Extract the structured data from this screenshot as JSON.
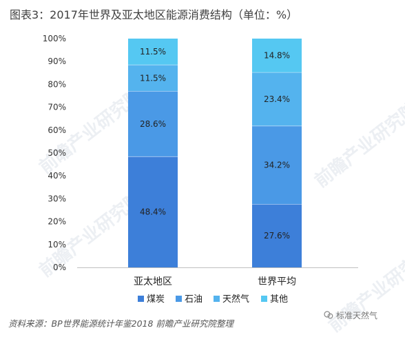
{
  "title": "图表3：2017年世界及亚太地区能源消费结构（单位：%）",
  "source": "资料来源：BP世界能源统计年鉴2018  前瞻产业研究院整理",
  "watermark_text": "前瞻产业研究院",
  "wechat_text": "标准天然气",
  "chart_data": {
    "type": "bar",
    "stacked": true,
    "categories": [
      "亚太地区",
      "世界平均"
    ],
    "series": [
      {
        "name": "煤炭",
        "values": [
          48.4,
          27.6
        ],
        "color": "#3d7fd9",
        "labels": [
          "48.4%",
          "27.6%"
        ]
      },
      {
        "name": "石油",
        "values": [
          28.6,
          34.2
        ],
        "color": "#4a99e6",
        "labels": [
          "28.6%",
          "34.2%"
        ]
      },
      {
        "name": "天然气",
        "values": [
          11.5,
          23.4
        ],
        "color": "#54b3ee",
        "labels": [
          "11.5%",
          "23.4%"
        ]
      },
      {
        "name": "其他",
        "values": [
          11.5,
          14.8
        ],
        "color": "#55c8f2",
        "labels": [
          "11.5%",
          "14.8%"
        ]
      }
    ],
    "yticks": [
      "0%",
      "10%",
      "20%",
      "30%",
      "40%",
      "50%",
      "60%",
      "70%",
      "80%",
      "90%",
      "100%"
    ],
    "ylim": [
      0,
      100
    ],
    "legend_position": "bottom",
    "grid": false
  }
}
